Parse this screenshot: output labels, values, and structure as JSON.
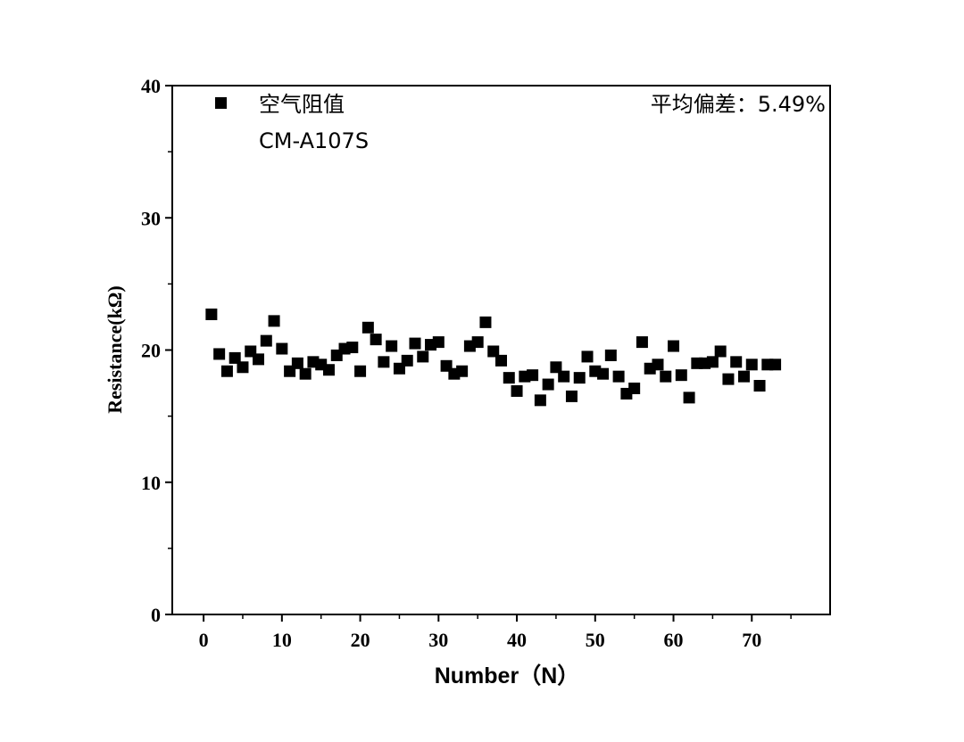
{
  "chart_data": {
    "type": "scatter",
    "title": "",
    "xlabel": "Number（N）",
    "ylabel": "Resistance(kΩ)",
    "xlim": [
      -4,
      80
    ],
    "ylim": [
      0,
      40
    ],
    "x_ticks": [
      0,
      10,
      20,
      30,
      40,
      50,
      60,
      70
    ],
    "y_ticks": [
      0,
      10,
      20,
      30,
      40
    ],
    "x_tick_labels": [
      "0",
      "10",
      "20",
      "30",
      "40",
      "50",
      "60",
      "70"
    ],
    "y_tick_labels": [
      "0",
      "10",
      "20",
      "30",
      "40"
    ],
    "grid": false,
    "legend_position": "top-left",
    "series": [
      {
        "name": "空气阻值",
        "color": "#000000",
        "marker": "square",
        "x": [
          1,
          2,
          3,
          4,
          5,
          6,
          7,
          8,
          9,
          10,
          11,
          12,
          13,
          14,
          15,
          16,
          17,
          18,
          19,
          20,
          21,
          22,
          23,
          24,
          25,
          26,
          27,
          28,
          29,
          30,
          31,
          32,
          33,
          34,
          35,
          36,
          37,
          38,
          39,
          40,
          41,
          42,
          43,
          44,
          45,
          46,
          47,
          48,
          49,
          50,
          51,
          52,
          53,
          54,
          55,
          56,
          57,
          58,
          59,
          60,
          61,
          62,
          63,
          64,
          65,
          66,
          67,
          68,
          69,
          70,
          71,
          72,
          73
        ],
        "y": [
          22.7,
          19.7,
          18.4,
          19.4,
          18.7,
          19.9,
          19.3,
          20.7,
          22.2,
          20.1,
          18.4,
          19.0,
          18.2,
          19.1,
          18.9,
          18.5,
          19.6,
          20.1,
          20.2,
          18.4,
          21.7,
          20.8,
          19.1,
          20.3,
          18.6,
          19.2,
          20.5,
          19.5,
          20.4,
          20.6,
          18.8,
          18.2,
          18.4,
          20.3,
          20.6,
          22.1,
          19.9,
          19.2,
          17.9,
          16.9,
          18.0,
          18.1,
          16.2,
          17.4,
          18.7,
          18.0,
          16.5,
          17.9,
          19.5,
          18.4,
          18.2,
          19.6,
          18.0,
          16.7,
          17.1,
          20.6,
          18.6,
          18.9,
          18.0,
          20.3,
          18.1,
          16.4,
          19.0,
          19.0,
          19.1,
          19.9,
          17.8,
          19.1,
          18.0,
          18.9,
          17.3,
          18.9,
          18.9
        ]
      }
    ],
    "legend": {
      "marker_label": "空气阻值",
      "second_line": "CM-A107S"
    },
    "annotation": "平均偏差：5.49%"
  }
}
